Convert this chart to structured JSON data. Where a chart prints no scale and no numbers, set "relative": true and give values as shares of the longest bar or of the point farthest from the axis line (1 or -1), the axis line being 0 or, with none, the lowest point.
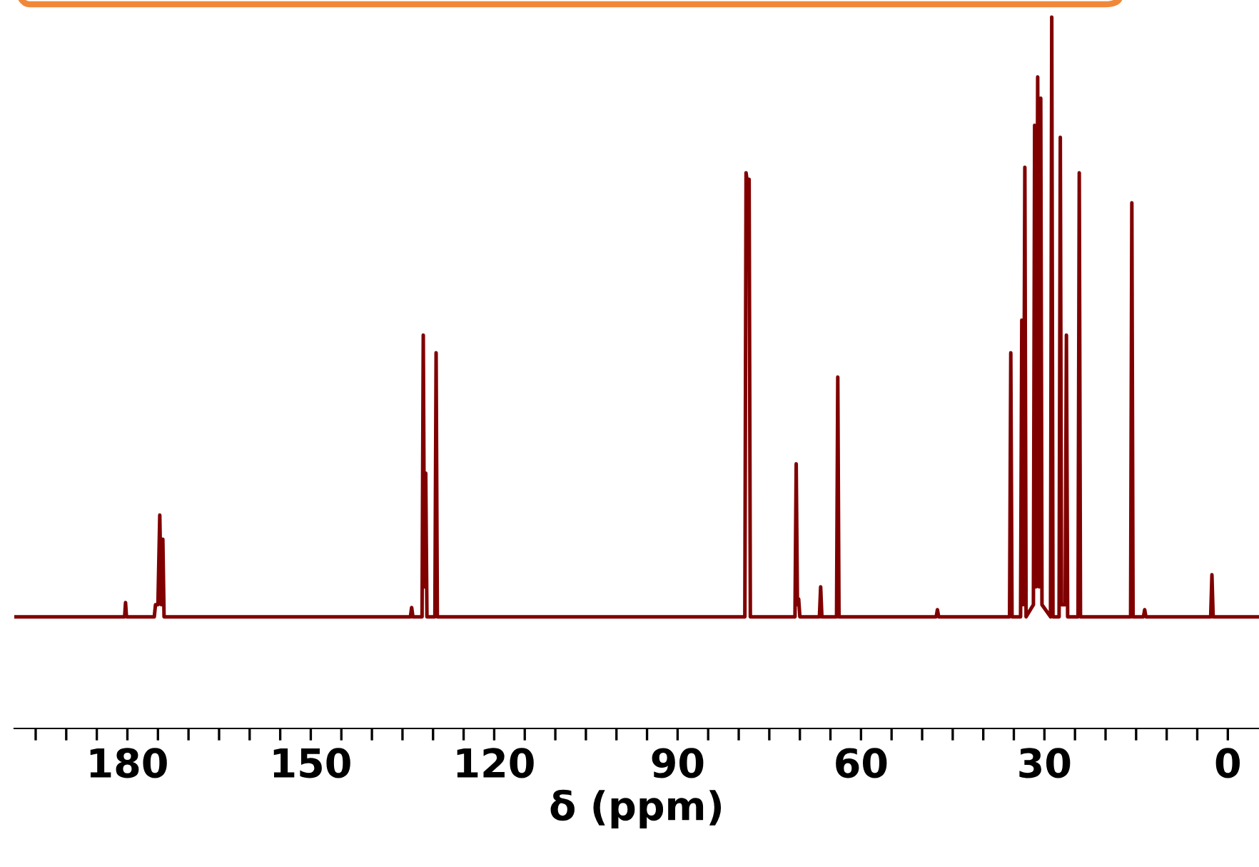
{
  "chart_data": {
    "type": "line",
    "relative": true,
    "xlabel": "δ (ppm)",
    "xlim": [
      198.5,
      -5.1
    ],
    "xticks": [
      {
        "value": 195,
        "label": null
      },
      {
        "value": 190,
        "label": null
      },
      {
        "value": 185,
        "label": null
      },
      180,
      {
        "value": 175,
        "label": null
      },
      {
        "value": 170,
        "label": null
      },
      {
        "value": 165,
        "label": null
      },
      {
        "value": 160,
        "label": null
      },
      {
        "value": 155,
        "label": null
      },
      150,
      {
        "value": 145,
        "label": null
      },
      {
        "value": 140,
        "label": null
      },
      {
        "value": 135,
        "label": null
      },
      {
        "value": 130,
        "label": null
      },
      {
        "value": 125,
        "label": null
      },
      120,
      {
        "value": 115,
        "label": null
      },
      {
        "value": 110,
        "label": null
      },
      {
        "value": 105,
        "label": null
      },
      {
        "value": 100,
        "label": null
      },
      {
        "value": 95,
        "label": null
      },
      90,
      {
        "value": 85,
        "label": null
      },
      {
        "value": 80,
        "label": null
      },
      {
        "value": 75,
        "label": null
      },
      {
        "value": 70,
        "label": null
      },
      {
        "value": 65,
        "label": null
      },
      60,
      {
        "value": 55,
        "label": null
      },
      {
        "value": 50,
        "label": null
      },
      {
        "value": 45,
        "label": null
      },
      {
        "value": 40,
        "label": null
      },
      {
        "value": 35,
        "label": null
      },
      30,
      {
        "value": 25,
        "label": null
      },
      {
        "value": 20,
        "label": null
      },
      {
        "value": 15,
        "label": null
      },
      {
        "value": 10,
        "label": null
      },
      {
        "value": 5,
        "label": null
      },
      0
    ],
    "tick_labels": "x",
    "grid": false,
    "legend": false,
    "marker": "none",
    "line_style": "solid",
    "series": [
      {
        "color": "#800000",
        "x": [
          198.4,
          180.45,
          180.3,
          180.15,
          175.6,
          175.4,
          175.0,
          174.7,
          174.45,
          174.2,
          174.0,
          133.7,
          133.5,
          133.3,
          131.8,
          131.6,
          131.4,
          131.2,
          131.0,
          129.7,
          129.5,
          129.3,
          79.0,
          78.8,
          78.55,
          78.3,
          78.1,
          70.8,
          70.6,
          70.4,
          70.2,
          70.0,
          66.8,
          66.6,
          66.4,
          64.0,
          63.8,
          63.6,
          47.7,
          47.5,
          47.3,
          35.7,
          35.5,
          35.3,
          33.9,
          33.7,
          33.45,
          33.2,
          33.0,
          31.8,
          31.6,
          31.35,
          31.1,
          30.85,
          30.6,
          30.4,
          29.0,
          28.8,
          28.6,
          27.6,
          27.4,
          27.2,
          26.6,
          26.4,
          26.2,
          24.5,
          24.3,
          24.1,
          15.9,
          15.7,
          15.5,
          13.8,
          13.6,
          13.4,
          2.8,
          2.6,
          2.4,
          -5.0
        ],
        "values": [
          0.157,
          0.157,
          0.177,
          0.157,
          0.157,
          0.174,
          0.174,
          0.3,
          0.174,
          0.266,
          0.157,
          0.157,
          0.17,
          0.157,
          0.157,
          0.553,
          0.199,
          0.359,
          0.157,
          0.157,
          0.528,
          0.157,
          0.157,
          0.781,
          0.764,
          0.772,
          0.157,
          0.157,
          0.372,
          0.174,
          0.182,
          0.157,
          0.157,
          0.199,
          0.157,
          0.157,
          0.494,
          0.157,
          0.157,
          0.167,
          0.157,
          0.157,
          0.528,
          0.157,
          0.157,
          0.574,
          0.174,
          0.789,
          0.157,
          0.174,
          0.848,
          0.199,
          0.916,
          0.199,
          0.886,
          0.174,
          0.157,
          1.0,
          0.157,
          0.157,
          0.831,
          0.174,
          0.174,
          0.553,
          0.157,
          0.157,
          0.781,
          0.157,
          0.157,
          0.739,
          0.157,
          0.157,
          0.167,
          0.157,
          0.157,
          0.216,
          0.157,
          0.157
        ]
      }
    ]
  }
}
